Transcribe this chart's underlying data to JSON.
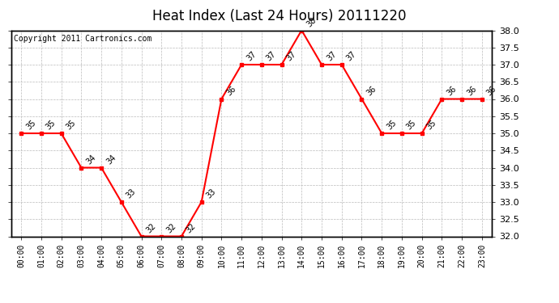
{
  "title": "Heat Index (Last 24 Hours) 20111220",
  "copyright_text": "Copyright 2011 Cartronics.com",
  "hours": [
    "00:00",
    "01:00",
    "02:00",
    "03:00",
    "04:00",
    "05:00",
    "06:00",
    "07:00",
    "08:00",
    "09:00",
    "10:00",
    "11:00",
    "12:00",
    "13:00",
    "14:00",
    "15:00",
    "16:00",
    "17:00",
    "18:00",
    "19:00",
    "20:00",
    "21:00",
    "22:00",
    "23:00"
  ],
  "values": [
    35,
    35,
    35,
    34,
    34,
    33,
    32,
    32,
    32,
    33,
    36,
    37,
    37,
    37,
    38,
    37,
    37,
    36,
    35,
    35,
    35,
    36,
    36,
    36
  ],
  "line_color": "#ff0000",
  "marker": "s",
  "marker_size": 3,
  "marker_color": "#ff0000",
  "ylim": [
    32.0,
    38.0
  ],
  "ytick_interval": 0.5,
  "grid_color": "#bbbbbb",
  "bg_color": "#ffffff",
  "title_fontsize": 12,
  "label_fontsize": 7,
  "annotation_fontsize": 7,
  "copyright_fontsize": 7
}
